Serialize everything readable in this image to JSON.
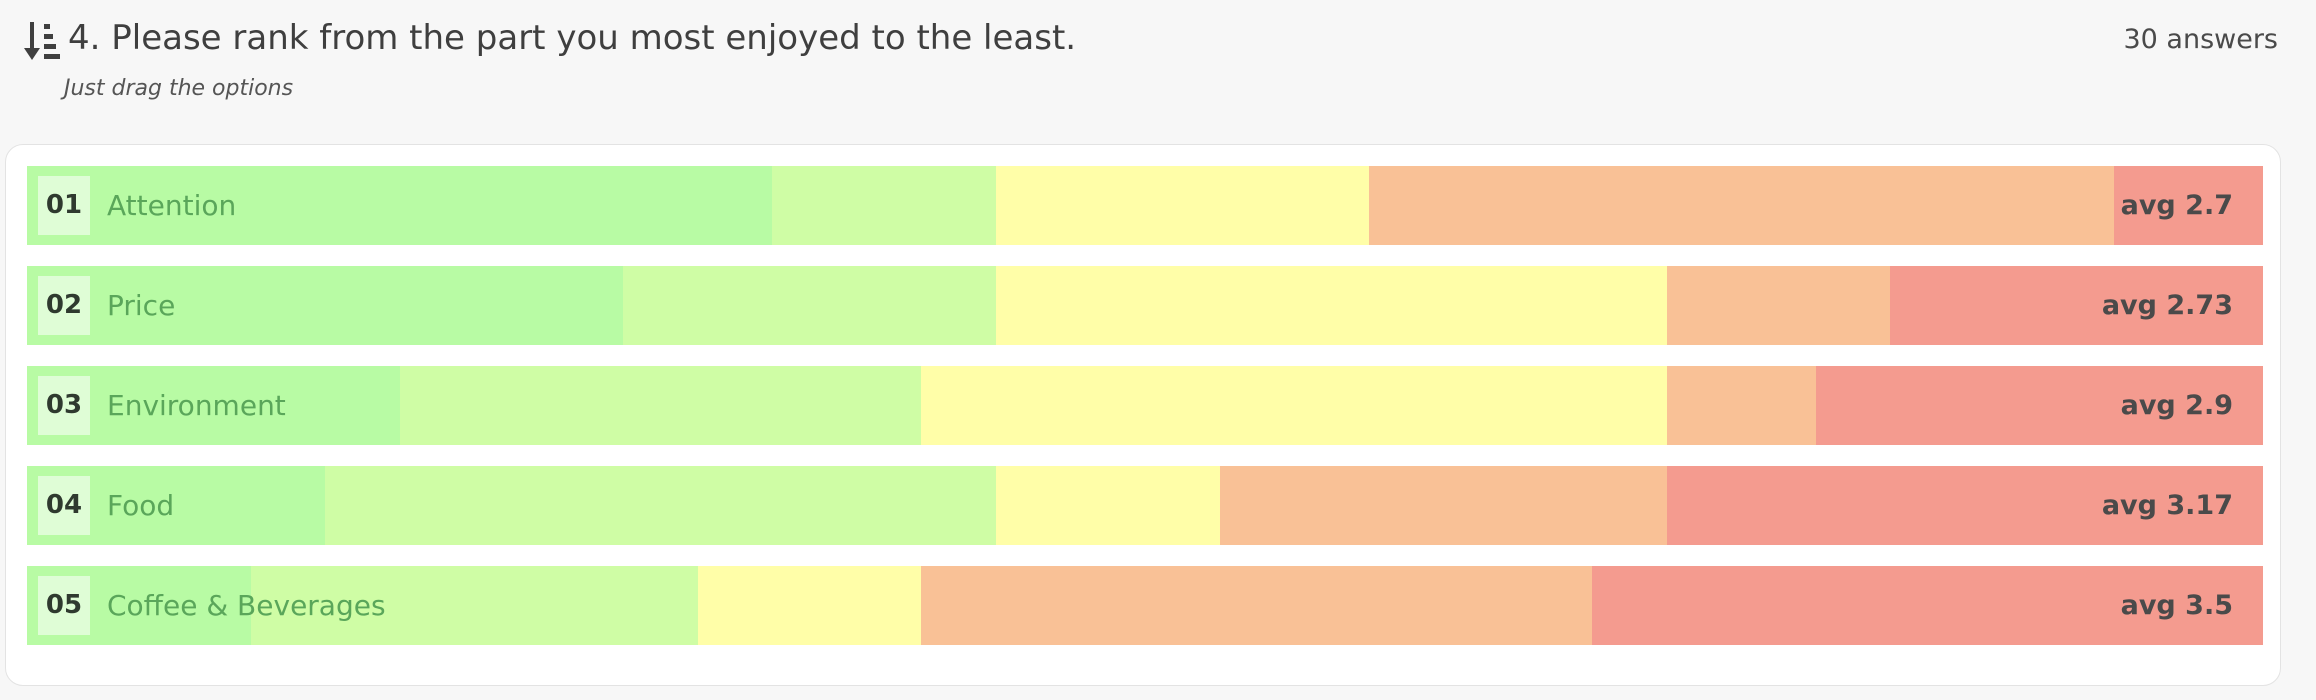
{
  "question": {
    "icon": "rank-sort-icon",
    "title": "4. Please rank from the part you most enjoyed to the least.",
    "hint": "Just drag the options",
    "answers_count": "30 answers"
  },
  "colors": {
    "rank_1": "#b8fba4",
    "rank_2": "#cffda5",
    "rank_3": "#fffea8",
    "rank_4": "#f9c196",
    "rank_5": "#f49b8f"
  },
  "chart_data": {
    "type": "bar",
    "stacked": true,
    "orientation": "horizontal",
    "total": 30,
    "categories": [
      "Attention",
      "Price",
      "Environment",
      "Food",
      "Coffee & Beverages"
    ],
    "ranks": [
      "01",
      "02",
      "03",
      "04",
      "05"
    ],
    "averages": [
      "avg 2.7",
      "avg 2.73",
      "avg 2.9",
      "avg 3.17",
      "avg 3.5"
    ],
    "series": [
      {
        "values": [
          10,
          8,
          5,
          4,
          3
        ]
      },
      {
        "values": [
          3,
          5,
          7,
          9,
          6
        ]
      },
      {
        "values": [
          5,
          9,
          10,
          3,
          3
        ]
      },
      {
        "values": [
          10,
          3,
          2,
          6,
          9
        ]
      },
      {
        "values": [
          2,
          5,
          6,
          8,
          9
        ]
      }
    ]
  }
}
